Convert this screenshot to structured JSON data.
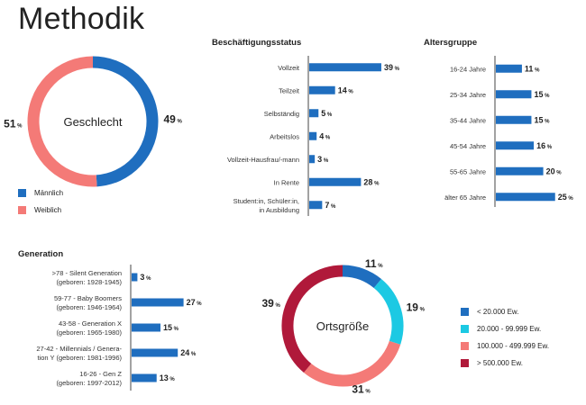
{
  "page_title": "Methodik",
  "colors": {
    "blue": "#1f6ebf",
    "salmon": "#f47a77",
    "cyan": "#1cc9e3",
    "darkred": "#b0193a",
    "axis": "#444444"
  },
  "chart_data": [
    {
      "id": "geschlecht",
      "type": "pie",
      "title": "Geschlecht",
      "categories": [
        "Männlich",
        "Weiblich"
      ],
      "values": [
        49,
        51
      ],
      "unit": "%",
      "colors": [
        "#1f6ebf",
        "#f47a77"
      ],
      "legend_position": "bottom-left"
    },
    {
      "id": "beschaeftigung",
      "type": "bar",
      "orientation": "horizontal",
      "title": "Beschäftigungsstatus",
      "categories": [
        "Vollzeit",
        "Teilzeit",
        "Selbständig",
        "Arbeitslos",
        "Vollzeit-Hausfrau/-mann",
        "In Rente",
        "Student:in, Schüler:in,|in Ausbildung"
      ],
      "values": [
        39,
        14,
        5,
        4,
        3,
        28,
        7
      ],
      "unit": "%",
      "xlim": [
        0,
        40
      ]
    },
    {
      "id": "altersgruppe",
      "type": "bar",
      "orientation": "horizontal",
      "title": "Altersgruppe",
      "categories": [
        "16-24 Jahre",
        "25-34 Jahre",
        "35-44 Jahre",
        "45-54 Jahre",
        "55-65 Jahre",
        "älter 65 Jahre"
      ],
      "values": [
        11,
        15,
        15,
        16,
        20,
        25
      ],
      "unit": "%",
      "xlim": [
        0,
        27
      ]
    },
    {
      "id": "generation",
      "type": "bar",
      "orientation": "horizontal",
      "title": "Generation",
      "categories": [
        ">78 - Silent Generation|(geboren: 1928-1945)",
        "59-77 - Baby Boomers|(geboren: 1946-1964)",
        "43-58 - Generation X|(geboren: 1965-1980)",
        "27-42 - Millennials / Genera-|tion Y (geboren: 1981-1996)",
        "16-26 - Gen Z|(geboren: 1997-2012)"
      ],
      "values": [
        3,
        27,
        15,
        24,
        13
      ],
      "unit": "%",
      "xlim": [
        0,
        30
      ]
    },
    {
      "id": "ortsgroesse",
      "type": "pie",
      "title": "Ortsgröße",
      "categories": [
        "< 20.000 Ew.",
        "20.000 - 99.999 Ew.",
        "100.000 - 499.999 Ew.",
        "> 500.000 Ew."
      ],
      "values": [
        11,
        19,
        31,
        39
      ],
      "unit": "%",
      "colors": [
        "#1f6ebf",
        "#1cc9e3",
        "#f47a77",
        "#b0193a"
      ],
      "legend_position": "right"
    }
  ]
}
